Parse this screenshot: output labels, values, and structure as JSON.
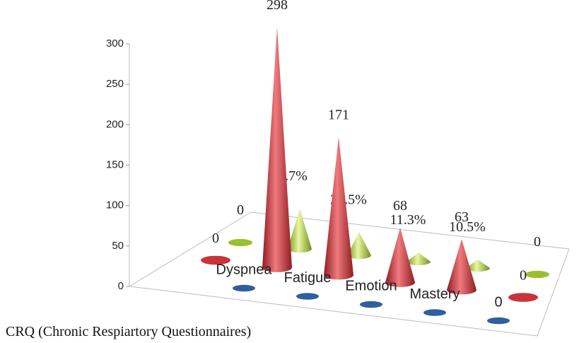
{
  "chart_data": {
    "type": "cone3d",
    "title": "CRQ (Chronic Respiartory Questionnaires)",
    "categories": [
      null,
      null,
      null,
      null,
      null,
      null
    ],
    "ylim": [
      0,
      300
    ],
    "yticks": [
      0,
      50,
      100,
      150,
      200,
      250,
      300
    ],
    "series": [
      {
        "color": "#2f5f9e",
        "values": [
          null,
          0,
          0,
          0,
          0,
          0
        ],
        "value_labels": [
          null,
          "Dyspnea",
          "Fatigue",
          "Emotion",
          "Mastery",
          "0"
        ]
      },
      {
        "color": "#c8343a",
        "values": [
          0,
          298,
          171,
          68,
          63,
          0
        ]
      },
      {
        "color": "#9bc02f",
        "values": [
          0,
          49.7,
          28.5,
          11.3,
          10.5,
          0
        ],
        "value_labels": [
          "0",
          "49.7%",
          "28.5%",
          "11.3%",
          "10.5%",
          "0"
        ]
      }
    ]
  }
}
